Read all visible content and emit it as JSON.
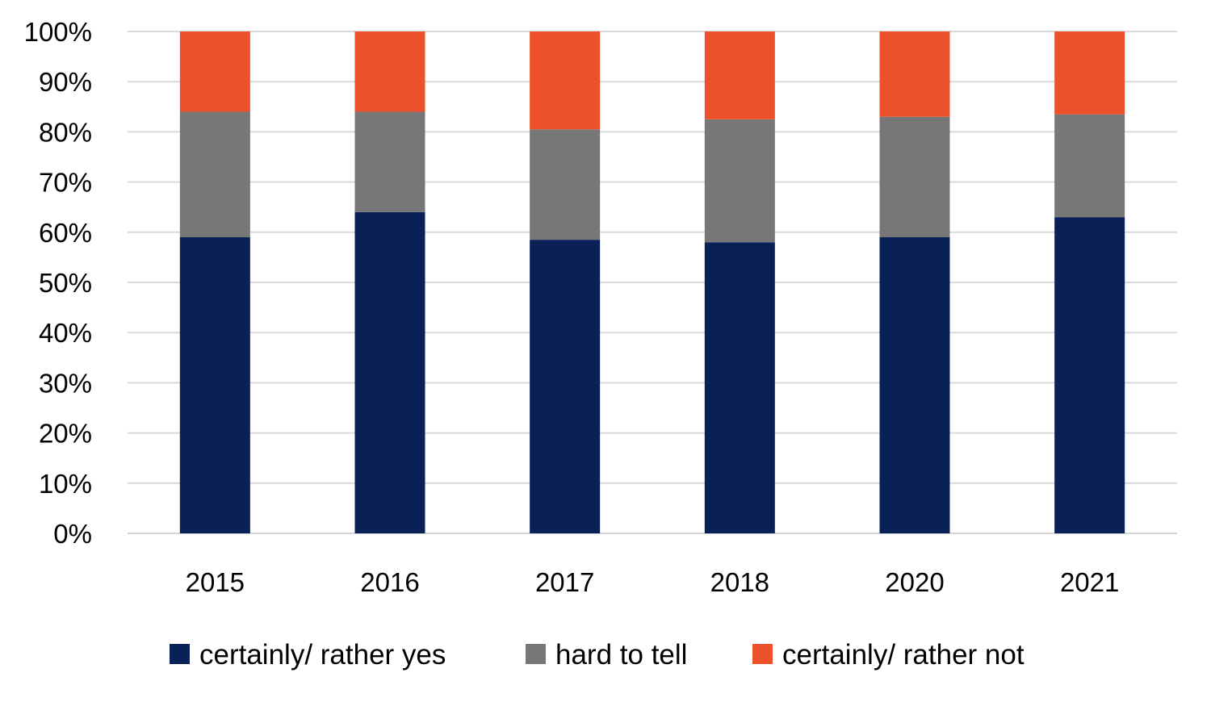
{
  "chart_data": {
    "type": "bar",
    "stacked": true,
    "percent": true,
    "categories": [
      "2015",
      "2016",
      "2017",
      "2018",
      "2020",
      "2021"
    ],
    "series": [
      {
        "name": "certainly/ rather yes",
        "color": "#0a2158",
        "values": [
          59,
          64,
          58.5,
          58,
          59,
          63
        ]
      },
      {
        "name": "hard to tell",
        "color": "#777777",
        "values": [
          25,
          20,
          22,
          24.5,
          24,
          20.5
        ]
      },
      {
        "name": "certainly/ rather not",
        "color": "#ec512b",
        "values": [
          16,
          16,
          19.5,
          17.5,
          17,
          16.5
        ]
      }
    ],
    "yticks": [
      "0%",
      "10%",
      "20%",
      "30%",
      "40%",
      "50%",
      "60%",
      "70%",
      "80%",
      "90%",
      "100%"
    ],
    "ylim": [
      0,
      100
    ],
    "grid": true,
    "legend_position": "bottom",
    "title": "",
    "xlabel": "",
    "ylabel": ""
  }
}
